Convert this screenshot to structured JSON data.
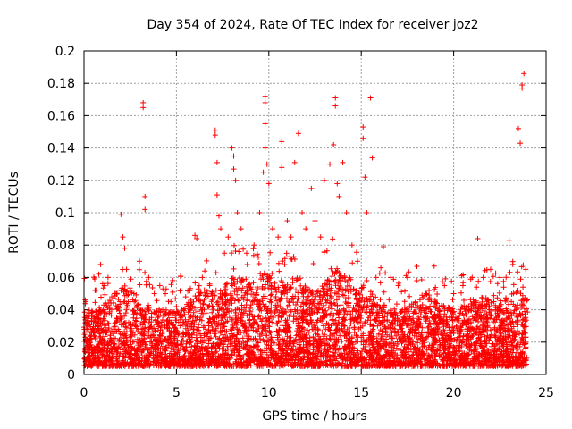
{
  "chart_data": {
    "type": "scatter",
    "title": "Day 354 of 2024, Rate Of TEC Index for receiver joz2",
    "xlabel": "GPS time / hours",
    "ylabel": "ROTI / TECUs",
    "xlim": [
      0,
      25
    ],
    "ylim": [
      0,
      0.2
    ],
    "x_ticks": [
      "0",
      "5",
      "10",
      "15",
      "20",
      "25"
    ],
    "y_ticks": [
      "0",
      "0.02",
      "0.04",
      "0.06",
      "0.08",
      "0.1",
      "0.12",
      "0.14",
      "0.16",
      "0.18",
      "0.2"
    ],
    "grid": true,
    "marker": "+",
    "color": "#ff0000",
    "series": [
      {
        "name": "ROTI",
        "points": [
          [
            0.1,
            0.045
          ],
          [
            0.2,
            0.03
          ],
          [
            0.4,
            0.038
          ],
          [
            0.6,
            0.052
          ],
          [
            0.8,
            0.062
          ],
          [
            0.9,
            0.068
          ],
          [
            1.1,
            0.055
          ],
          [
            1.3,
            0.06
          ],
          [
            1.5,
            0.048
          ],
          [
            1.7,
            0.05
          ],
          [
            2.0,
            0.099
          ],
          [
            2.1,
            0.085
          ],
          [
            2.2,
            0.078
          ],
          [
            2.3,
            0.065
          ],
          [
            2.5,
            0.045
          ],
          [
            2.7,
            0.05
          ],
          [
            3.0,
            0.07
          ],
          [
            3.2,
            0.168
          ],
          [
            3.2,
            0.165
          ],
          [
            3.3,
            0.11
          ],
          [
            3.3,
            0.102
          ],
          [
            3.5,
            0.06
          ],
          [
            3.8,
            0.05
          ],
          [
            4.1,
            0.055
          ],
          [
            4.4,
            0.05
          ],
          [
            4.7,
            0.045
          ],
          [
            5.0,
            0.042
          ],
          [
            5.5,
            0.048
          ],
          [
            6.0,
            0.086
          ],
          [
            6.1,
            0.084
          ],
          [
            6.4,
            0.06
          ],
          [
            6.8,
            0.055
          ],
          [
            7.1,
            0.151
          ],
          [
            7.1,
            0.148
          ],
          [
            7.2,
            0.131
          ],
          [
            7.2,
            0.111
          ],
          [
            7.3,
            0.098
          ],
          [
            7.4,
            0.09
          ],
          [
            7.6,
            0.075
          ],
          [
            7.8,
            0.085
          ],
          [
            8.0,
            0.14
          ],
          [
            8.1,
            0.135
          ],
          [
            8.1,
            0.127
          ],
          [
            8.2,
            0.12
          ],
          [
            8.3,
            0.1
          ],
          [
            8.5,
            0.09
          ],
          [
            8.8,
            0.075
          ],
          [
            9.2,
            0.08
          ],
          [
            9.5,
            0.1
          ],
          [
            9.7,
            0.125
          ],
          [
            9.8,
            0.172
          ],
          [
            9.8,
            0.168
          ],
          [
            9.8,
            0.155
          ],
          [
            9.8,
            0.14
          ],
          [
            9.9,
            0.13
          ],
          [
            10.0,
            0.118
          ],
          [
            10.2,
            0.09
          ],
          [
            10.5,
            0.085
          ],
          [
            10.7,
            0.144
          ],
          [
            10.7,
            0.128
          ],
          [
            11.0,
            0.095
          ],
          [
            11.2,
            0.085
          ],
          [
            11.4,
            0.131
          ],
          [
            11.6,
            0.149
          ],
          [
            11.8,
            0.1
          ],
          [
            12.0,
            0.09
          ],
          [
            12.3,
            0.115
          ],
          [
            12.5,
            0.095
          ],
          [
            12.8,
            0.085
          ],
          [
            13.0,
            0.12
          ],
          [
            13.3,
            0.13
          ],
          [
            13.5,
            0.142
          ],
          [
            13.6,
            0.171
          ],
          [
            13.6,
            0.166
          ],
          [
            13.7,
            0.118
          ],
          [
            13.8,
            0.11
          ],
          [
            14.0,
            0.131
          ],
          [
            14.2,
            0.1
          ],
          [
            14.5,
            0.08
          ],
          [
            14.8,
            0.07
          ],
          [
            15.1,
            0.153
          ],
          [
            15.1,
            0.146
          ],
          [
            15.2,
            0.122
          ],
          [
            15.3,
            0.1
          ],
          [
            15.5,
            0.171
          ],
          [
            15.6,
            0.134
          ],
          [
            15.8,
            0.06
          ],
          [
            16.2,
            0.079
          ],
          [
            16.6,
            0.06
          ],
          [
            17.0,
            0.055
          ],
          [
            17.5,
            0.06
          ],
          [
            18.0,
            0.058
          ],
          [
            18.5,
            0.05
          ],
          [
            19.0,
            0.045
          ],
          [
            19.5,
            0.055
          ],
          [
            20.0,
            0.05
          ],
          [
            20.5,
            0.055
          ],
          [
            21.0,
            0.06
          ],
          [
            21.3,
            0.084
          ],
          [
            21.6,
            0.06
          ],
          [
            22.0,
            0.065
          ],
          [
            22.5,
            0.06
          ],
          [
            23.0,
            0.083
          ],
          [
            23.2,
            0.068
          ],
          [
            23.5,
            0.152
          ],
          [
            23.6,
            0.143
          ],
          [
            23.7,
            0.179
          ],
          [
            23.7,
            0.177
          ],
          [
            23.8,
            0.186
          ],
          [
            23.9,
            0.065
          ]
        ]
      }
    ],
    "dense_band": {
      "note": "thousands of overlapping red + markers forming a continuous band across 0-24 h",
      "floor_value": 0.005,
      "typical_upper": 0.04
    }
  }
}
